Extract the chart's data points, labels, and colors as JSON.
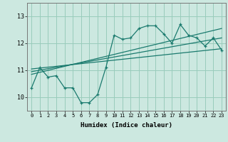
{
  "xlabel": "Humidex (Indice chaleur)",
  "background_color": "#cce8e0",
  "grid_color": "#99ccbb",
  "line_color": "#1a7a6e",
  "xlim": [
    -0.5,
    23.5
  ],
  "ylim": [
    9.5,
    13.5
  ],
  "yticks": [
    10,
    11,
    12,
    13
  ],
  "xticks": [
    0,
    1,
    2,
    3,
    4,
    5,
    6,
    7,
    8,
    9,
    10,
    11,
    12,
    13,
    14,
    15,
    16,
    17,
    18,
    19,
    20,
    21,
    22,
    23
  ],
  "data_x": [
    0,
    1,
    2,
    3,
    4,
    5,
    6,
    7,
    8,
    9,
    10,
    11,
    12,
    13,
    14,
    15,
    16,
    17,
    18,
    19,
    20,
    21,
    22,
    23
  ],
  "data_y": [
    10.35,
    11.1,
    10.75,
    10.8,
    10.35,
    10.35,
    9.8,
    9.8,
    10.1,
    11.1,
    12.3,
    12.15,
    12.2,
    12.55,
    12.65,
    12.65,
    12.35,
    12.0,
    12.7,
    12.3,
    12.2,
    11.9,
    12.2,
    11.75
  ],
  "trend1_x": [
    0,
    23
  ],
  "trend1_y": [
    11.05,
    11.8
  ],
  "trend2_x": [
    0,
    23
  ],
  "trend2_y": [
    10.95,
    12.2
  ],
  "trend3_x": [
    0,
    23
  ],
  "trend3_y": [
    10.85,
    12.55
  ]
}
